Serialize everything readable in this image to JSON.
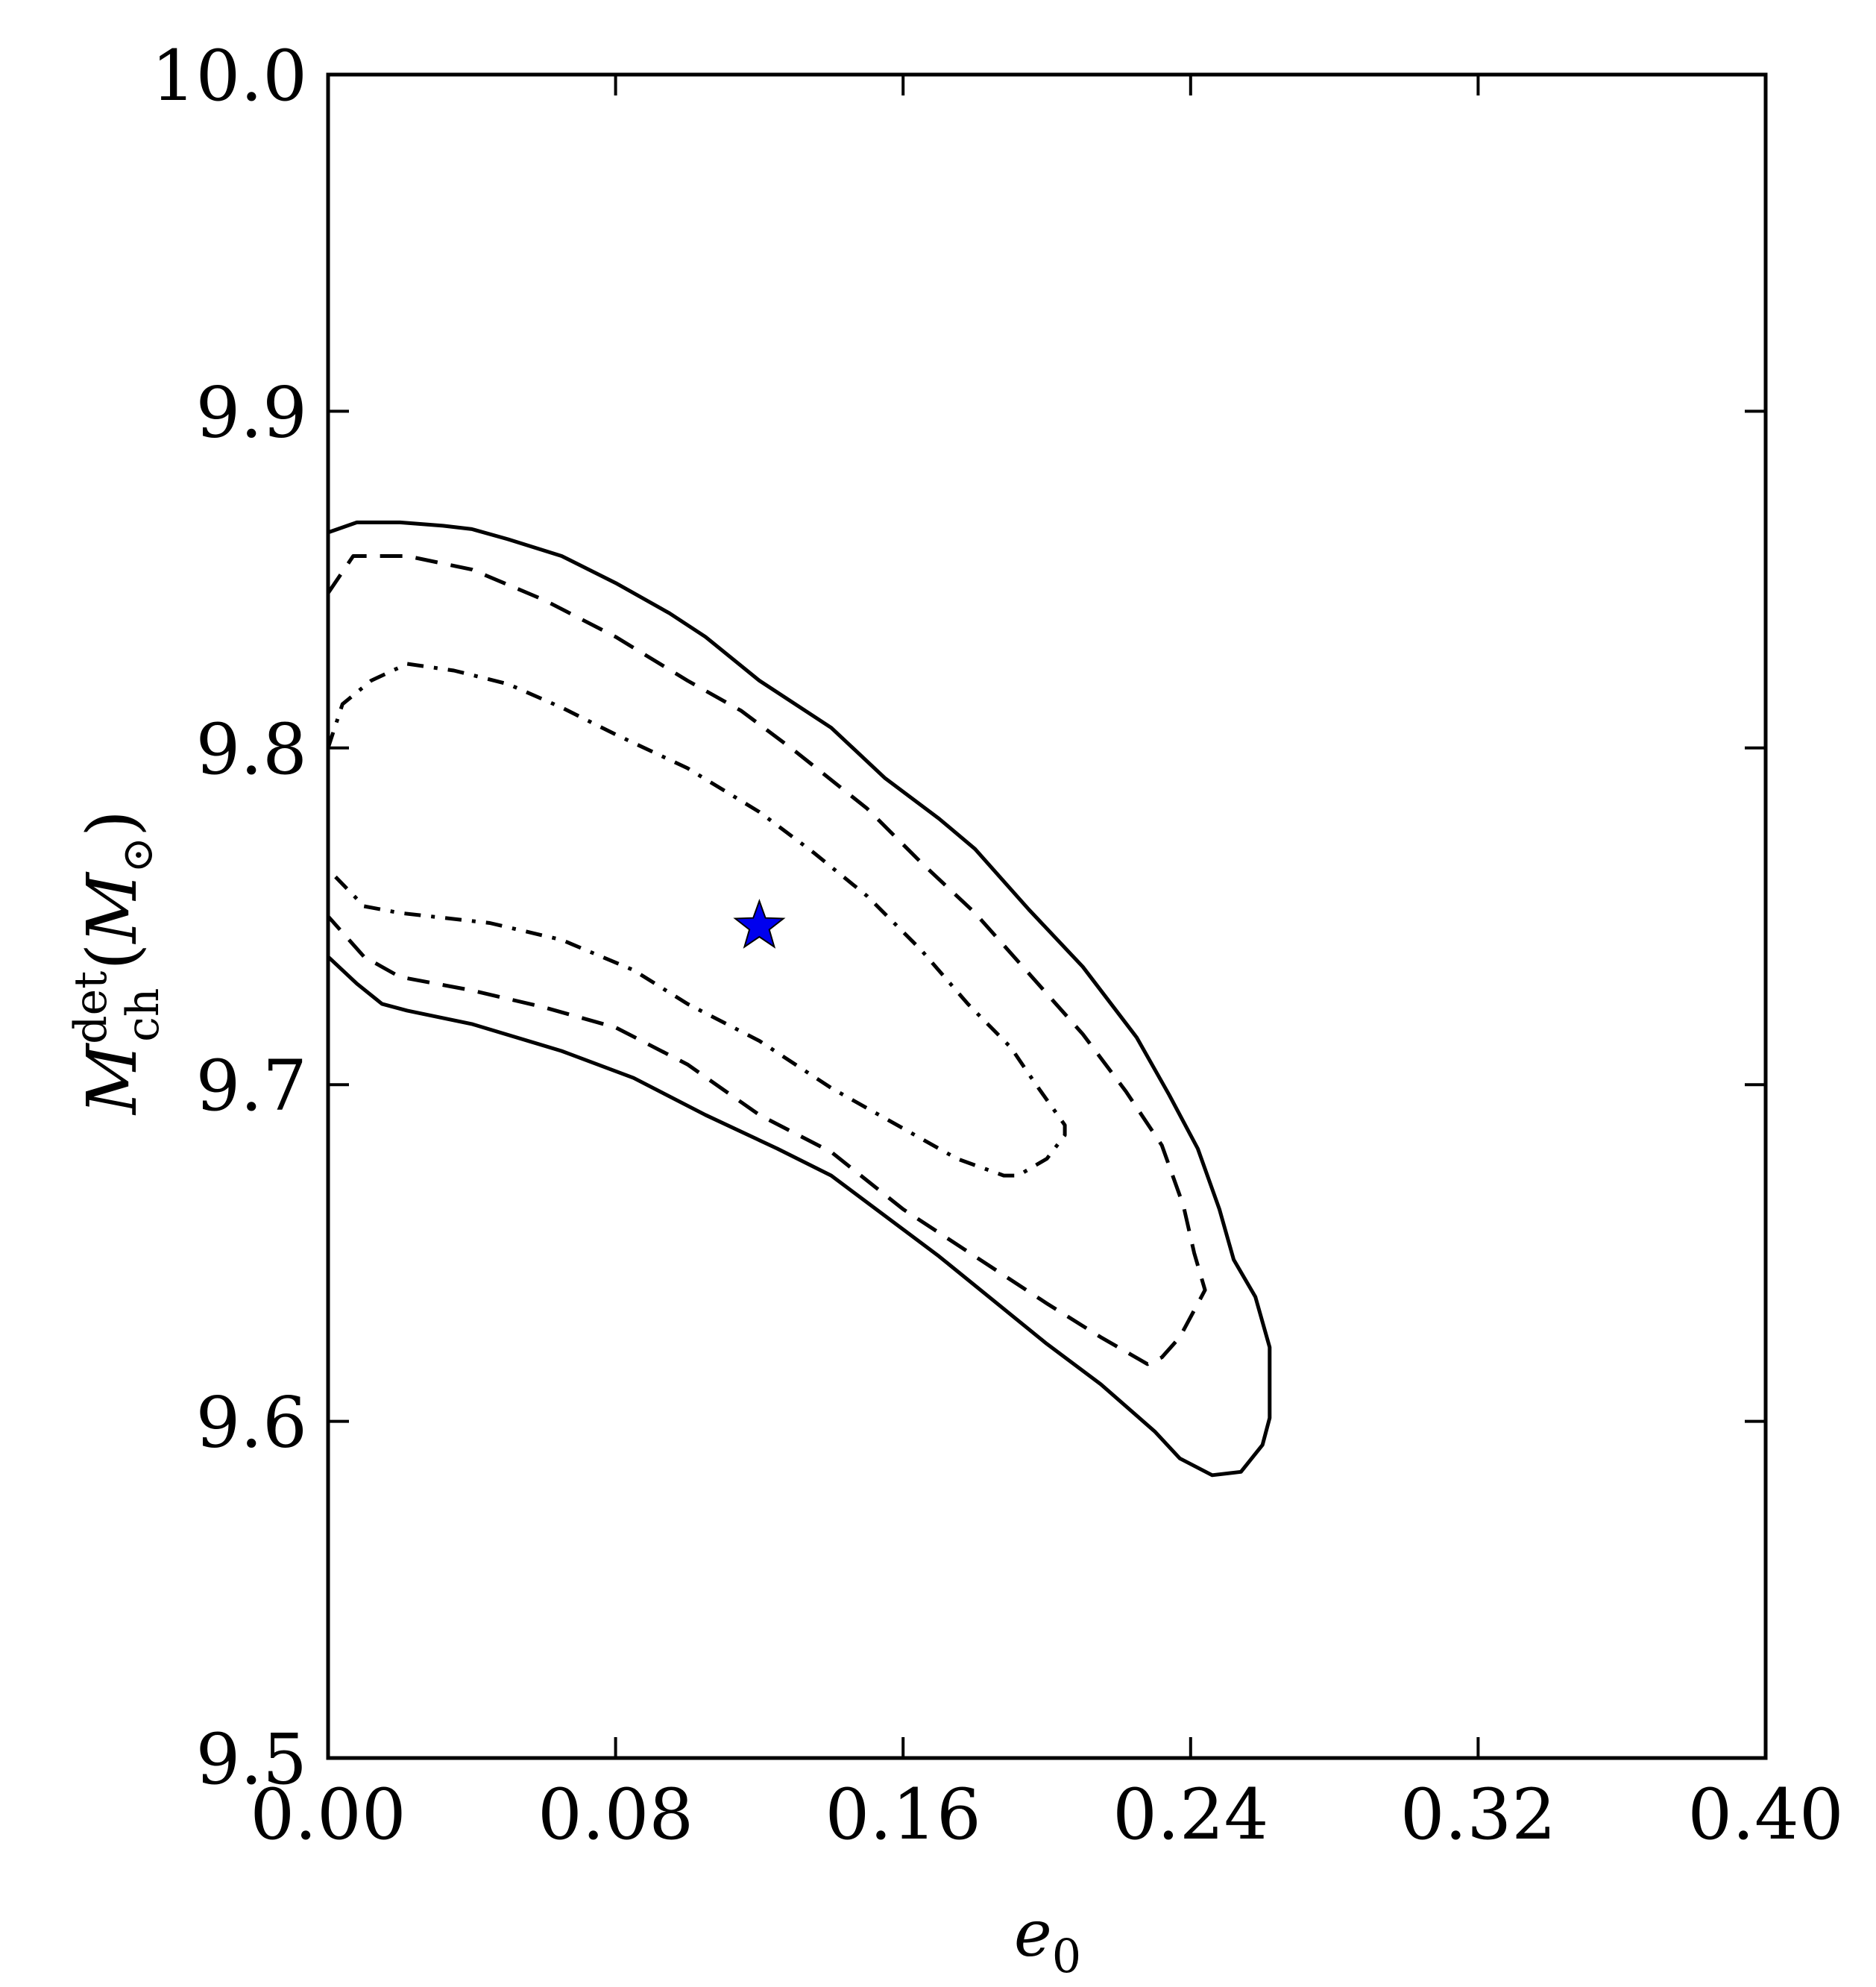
{
  "chart_data": {
    "type": "contour",
    "xlabel": "e",
    "xlabel_sub": "0",
    "ylabel": "M",
    "ylabel_sup": "det",
    "ylabel_sub": "ch",
    "ylabel_unit_open": "(",
    "ylabel_unit": "M",
    "ylabel_unit_sub": "⊙",
    "ylabel_unit_close": ")",
    "xlim": [
      0.0,
      0.4
    ],
    "ylim": [
      9.5,
      10.0
    ],
    "x_ticks": [
      "0.00",
      "0.08",
      "0.16",
      "0.24",
      "0.32",
      "0.40"
    ],
    "y_ticks": [
      "9.5",
      "9.6",
      "9.7",
      "9.8",
      "9.9",
      "10.0"
    ],
    "grid": false,
    "marker": {
      "shape": "star",
      "color": "#0000ee",
      "x": 0.12,
      "y": 9.747
    },
    "contours": [
      {
        "style": "solid",
        "color": "#000000",
        "points": [
          [
            0.0,
            9.864
          ],
          [
            0.008,
            9.867
          ],
          [
            0.02,
            9.867
          ],
          [
            0.032,
            9.866
          ],
          [
            0.04,
            9.865
          ],
          [
            0.05,
            9.862
          ],
          [
            0.065,
            9.857
          ],
          [
            0.08,
            9.849
          ],
          [
            0.095,
            9.84
          ],
          [
            0.105,
            9.833
          ],
          [
            0.12,
            9.82
          ],
          [
            0.14,
            9.806
          ],
          [
            0.155,
            9.791
          ],
          [
            0.17,
            9.779
          ],
          [
            0.18,
            9.77
          ],
          [
            0.195,
            9.752
          ],
          [
            0.21,
            9.735
          ],
          [
            0.225,
            9.714
          ],
          [
            0.234,
            9.697
          ],
          [
            0.242,
            9.681
          ],
          [
            0.248,
            9.663
          ],
          [
            0.252,
            9.648
          ],
          [
            0.258,
            9.637
          ],
          [
            0.262,
            9.622
          ],
          [
            0.262,
            9.601
          ],
          [
            0.26,
            9.593
          ],
          [
            0.254,
            9.585
          ],
          [
            0.246,
            9.584
          ],
          [
            0.237,
            9.589
          ],
          [
            0.23,
            9.597
          ],
          [
            0.215,
            9.611
          ],
          [
            0.2,
            9.623
          ],
          [
            0.185,
            9.636
          ],
          [
            0.17,
            9.649
          ],
          [
            0.155,
            9.661
          ],
          [
            0.14,
            9.673
          ],
          [
            0.125,
            9.681
          ],
          [
            0.105,
            9.691
          ],
          [
            0.085,
            9.702
          ],
          [
            0.065,
            9.71
          ],
          [
            0.04,
            9.718
          ],
          [
            0.022,
            9.722
          ],
          [
            0.015,
            9.724
          ],
          [
            0.008,
            9.73
          ],
          [
            0.0,
            9.738
          ]
        ]
      },
      {
        "style": "dashed",
        "color": "#000000",
        "points": [
          [
            0.0,
            9.846
          ],
          [
            0.007,
            9.857
          ],
          [
            0.022,
            9.857
          ],
          [
            0.04,
            9.853
          ],
          [
            0.06,
            9.844
          ],
          [
            0.08,
            9.833
          ],
          [
            0.1,
            9.82
          ],
          [
            0.115,
            9.811
          ],
          [
            0.13,
            9.799
          ],
          [
            0.15,
            9.782
          ],
          [
            0.165,
            9.766
          ],
          [
            0.18,
            9.751
          ],
          [
            0.195,
            9.733
          ],
          [
            0.21,
            9.715
          ],
          [
            0.222,
            9.698
          ],
          [
            0.232,
            9.682
          ],
          [
            0.238,
            9.664
          ],
          [
            0.241,
            9.65
          ],
          [
            0.244,
            9.639
          ],
          [
            0.237,
            9.625
          ],
          [
            0.232,
            9.619
          ],
          [
            0.228,
            9.617
          ],
          [
            0.215,
            9.625
          ],
          [
            0.2,
            9.635
          ],
          [
            0.18,
            9.649
          ],
          [
            0.16,
            9.663
          ],
          [
            0.14,
            9.68
          ],
          [
            0.12,
            9.691
          ],
          [
            0.1,
            9.706
          ],
          [
            0.08,
            9.717
          ],
          [
            0.06,
            9.723
          ],
          [
            0.04,
            9.728
          ],
          [
            0.02,
            9.732
          ],
          [
            0.01,
            9.738
          ],
          [
            0.0,
            9.75
          ]
        ]
      },
      {
        "style": "dashdot",
        "color": "#000000",
        "points": [
          [
            0.0,
            9.8
          ],
          [
            0.004,
            9.813
          ],
          [
            0.012,
            9.82
          ],
          [
            0.022,
            9.825
          ],
          [
            0.035,
            9.823
          ],
          [
            0.05,
            9.819
          ],
          [
            0.065,
            9.812
          ],
          [
            0.08,
            9.804
          ],
          [
            0.1,
            9.794
          ],
          [
            0.12,
            9.781
          ],
          [
            0.135,
            9.769
          ],
          [
            0.15,
            9.756
          ],
          [
            0.165,
            9.74
          ],
          [
            0.178,
            9.724
          ],
          [
            0.19,
            9.711
          ],
          [
            0.197,
            9.7
          ],
          [
            0.205,
            9.688
          ],
          [
            0.205,
            9.685
          ],
          [
            0.2,
            9.678
          ],
          [
            0.192,
            9.673
          ],
          [
            0.188,
            9.673
          ],
          [
            0.175,
            9.678
          ],
          [
            0.16,
            9.687
          ],
          [
            0.14,
            9.699
          ],
          [
            0.12,
            9.713
          ],
          [
            0.1,
            9.724
          ],
          [
            0.085,
            9.734
          ],
          [
            0.065,
            9.743
          ],
          [
            0.045,
            9.748
          ],
          [
            0.02,
            9.751
          ],
          [
            0.01,
            9.753
          ],
          [
            0.0,
            9.764
          ]
        ]
      }
    ]
  }
}
